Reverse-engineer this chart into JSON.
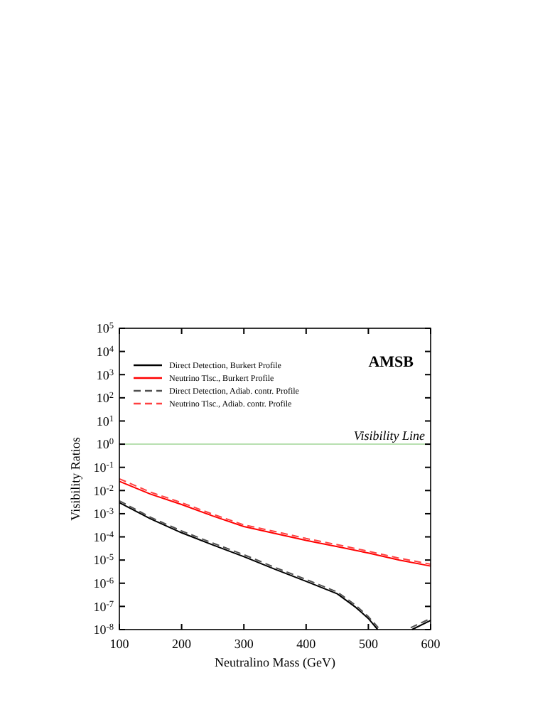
{
  "chart_data": {
    "type": "line",
    "xlabel": "Neutralino Mass (GeV)",
    "ylabel": "Visibility Ratios",
    "xlim": [
      100,
      600
    ],
    "xticks": [
      100,
      200,
      300,
      400,
      500,
      600
    ],
    "ylim": [
      1e-08,
      100000.0
    ],
    "log": true,
    "yticks": [
      {
        "value": 1e-08,
        "label": "10$^{-8}$"
      },
      {
        "value": 1e-07,
        "label": "10$^{-7}$"
      },
      {
        "value": 1e-06,
        "label": "10$^{-6}$"
      },
      {
        "value": 1e-05,
        "label": "10$^{-5}$"
      },
      {
        "value": 0.0001,
        "label": "10$^{-4}$"
      },
      {
        "value": 0.001,
        "label": "10$^{-3}$"
      },
      {
        "value": 0.01,
        "label": "10$^{-2}$"
      },
      {
        "value": 0.1,
        "label": "10$^{-1}$"
      },
      {
        "value": 1,
        "label": "10$^{0}$"
      },
      {
        "value": 10,
        "label": "10$^{1}$"
      },
      {
        "value": 100,
        "label": "10$^{2}$"
      },
      {
        "value": 1000,
        "label": "10$^{3}$"
      },
      {
        "value": 10000,
        "label": "10$^{4}$"
      },
      {
        "value": 100000,
        "label": "10$^{5}$"
      }
    ],
    "legend": "top left",
    "grid": false,
    "series": [
      {
        "name": "Direct Detection, Burkert Profile",
        "color": "#000000",
        "line_style": "solid",
        "x": [
          100,
          150,
          200,
          250,
          300,
          350,
          400,
          450,
          480,
          500,
          515,
          540,
          570,
          600
        ],
        "values": [
          0.003,
          0.0006,
          0.00015,
          4.5e-05,
          1.4e-05,
          4e-06,
          1.2e-06,
          3.5e-07,
          9e-08,
          3e-08,
          1e-08,
          null,
          1e-08,
          2.5e-08
        ]
      },
      {
        "name": "Neutrino Tlsc., Burkert Profile",
        "color": "#ff0000",
        "line_style": "solid",
        "x": [
          100,
          150,
          200,
          250,
          300,
          350,
          400,
          450,
          500,
          550,
          600
        ],
        "values": [
          0.025,
          0.007,
          0.0025,
          0.0008,
          0.00028,
          0.00014,
          7e-05,
          3.8e-05,
          2e-05,
          1e-05,
          5.5e-06
        ]
      },
      {
        "name": "Direct Detection, Adiab. contr. Profile",
        "color": "#505050",
        "line_style": "dashed",
        "x": [
          100,
          150,
          200,
          250,
          300,
          350,
          400,
          450,
          480,
          500,
          516,
          540,
          568,
          600
        ],
        "values": [
          0.0036,
          0.0007,
          0.00018,
          5.4e-05,
          1.7e-05,
          4.8e-06,
          1.45e-06,
          4.2e-07,
          1.1e-07,
          3.6e-08,
          1.2e-08,
          null,
          1.2e-08,
          3e-08
        ]
      },
      {
        "name": "Neutrino Tlsc., Adiab. contr. Profile",
        "color": "#ff4040",
        "line_style": "dashed",
        "x": [
          100,
          150,
          200,
          250,
          300,
          350,
          400,
          450,
          500,
          550,
          600
        ],
        "values": [
          0.032,
          0.0085,
          0.003,
          0.00095,
          0.00033,
          0.00017,
          8.5e-05,
          4.6e-05,
          2.4e-05,
          1.2e-05,
          6.6e-06
        ]
      }
    ],
    "ref_lines": [
      {
        "axis": "y",
        "value": 1,
        "label": "Visibility Line",
        "color": "#b8e0b0"
      }
    ],
    "annotations": [
      "AMSB"
    ]
  }
}
